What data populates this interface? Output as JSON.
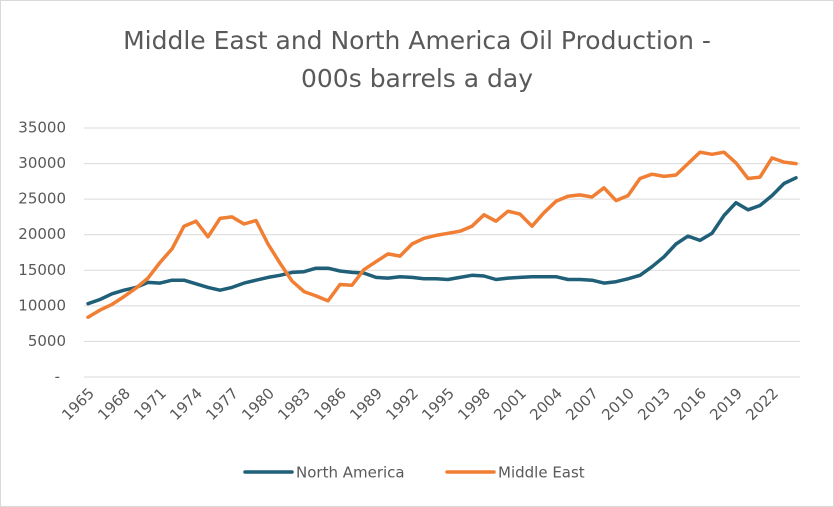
{
  "chart_data": {
    "type": "line",
    "title": [
      "Middle East and North America Oil Production -",
      "000s barrels a day"
    ],
    "categories": [
      "1965",
      null,
      null,
      "1968",
      null,
      null,
      "1971",
      null,
      null,
      "1974",
      null,
      null,
      "1977",
      null,
      null,
      "1980",
      null,
      null,
      "1983",
      null,
      null,
      "1986",
      null,
      null,
      "1989",
      null,
      null,
      "1992",
      null,
      null,
      "1995",
      null,
      null,
      "1998",
      null,
      null,
      "2001",
      null,
      null,
      "2004",
      null,
      null,
      "2007",
      null,
      null,
      "2010",
      null,
      null,
      "2013",
      null,
      null,
      "2016",
      null,
      null,
      "2019",
      null,
      null,
      "2022",
      null,
      null
    ],
    "series": [
      {
        "name": "North America",
        "color": "#1f5f78",
        "values": [
          10300,
          10900,
          11700,
          12200,
          12600,
          13300,
          13200,
          13600,
          13600,
          13100,
          12600,
          12200,
          12600,
          13200,
          13600,
          14000,
          14300,
          14700,
          14800,
          15300,
          15300,
          14900,
          14700,
          14600,
          14000,
          13900,
          14100,
          14000,
          13800,
          13800,
          13700,
          14000,
          14300,
          14200,
          13700,
          13900,
          14000,
          14100,
          14100,
          14100,
          13700,
          13700,
          13600,
          13200,
          13400,
          13800,
          14300,
          15500,
          16900,
          18700,
          19800,
          19200,
          20200,
          22700,
          24500,
          23500,
          24100,
          25500,
          27200,
          28000
        ]
      },
      {
        "name": "Middle East",
        "color": "#f07e33",
        "values": [
          8400,
          9400,
          10200,
          11300,
          12500,
          13900,
          16100,
          18000,
          21200,
          21900,
          19700,
          22300,
          22500,
          21500,
          22000,
          18700,
          16000,
          13500,
          12000,
          11400,
          10700,
          13000,
          12900,
          15100,
          16200,
          17300,
          17000,
          18700,
          19500,
          19900,
          20200,
          20500,
          21200,
          22800,
          21900,
          23300,
          22900,
          21200,
          23100,
          24700,
          25400,
          25600,
          25300,
          26600,
          24800,
          25500,
          27900,
          28500,
          28200,
          28400,
          30000,
          31600,
          31300,
          31600,
          30100,
          27900,
          28100,
          30800,
          30200,
          30000
        ]
      }
    ],
    "ylim": [
      0,
      35000
    ],
    "yticks": [
      {
        "value": 0,
        "label": "-"
      },
      5000,
      10000,
      15000,
      20000,
      25000,
      30000,
      35000
    ],
    "grid": true,
    "legend": "bottom"
  }
}
